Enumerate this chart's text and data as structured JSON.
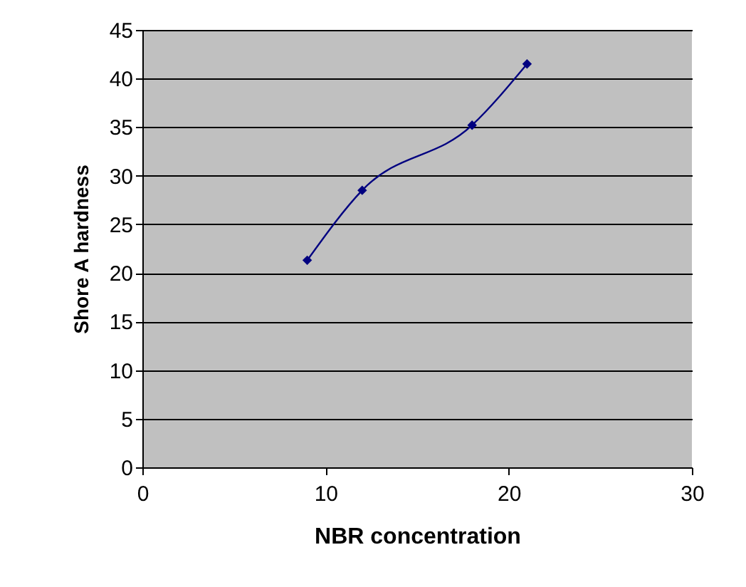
{
  "chart_data": {
    "type": "line",
    "xlabel": "NBR concentration",
    "ylabel": "Shore A hardness",
    "x": [
      9,
      12,
      18,
      21
    ],
    "series": [
      {
        "color": "#000080",
        "values": [
          21.3,
          28.5,
          35.2,
          41.5
        ]
      }
    ],
    "xlim": [
      0,
      30
    ],
    "xticks": [
      0,
      10,
      20,
      30
    ],
    "ylim": [
      0,
      45
    ],
    "yticks": [
      0,
      5,
      10,
      15,
      20,
      25,
      30,
      35,
      40,
      45
    ],
    "grid": "y",
    "marker": "diamond",
    "line_style": "solid",
    "legend": false
  }
}
